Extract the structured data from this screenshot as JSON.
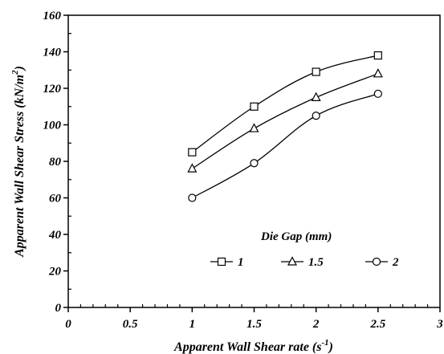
{
  "chart_data": {
    "type": "line",
    "xlabel": "Apparent Wall Shear rate (s",
    "xlabel_sup": "-1",
    "xlabel_end": ")",
    "ylabel": "Apparent Wall Shear Stress (kN/m",
    "ylabel_sup": "2",
    "ylabel_end": ")",
    "xlim": [
      0,
      3
    ],
    "ylim": [
      0,
      160
    ],
    "xticks": [
      0,
      0.5,
      1,
      1.5,
      2,
      2.5,
      3
    ],
    "xtick_labels": [
      "0",
      "0.5",
      "1",
      "1.5",
      "2",
      "2.5",
      "3"
    ],
    "yticks": [
      0,
      20,
      40,
      60,
      80,
      100,
      120,
      140,
      160
    ],
    "ytick_labels": [
      "0",
      "20",
      "40",
      "60",
      "80",
      "100",
      "120",
      "140",
      "160"
    ],
    "grid": false,
    "legend": {
      "title": "Die Gap  (mm)",
      "placement": "bottom-right, inside plot"
    },
    "x": [
      1,
      1.5,
      2,
      2.5
    ],
    "series": [
      {
        "name": "1",
        "marker": "square",
        "values": [
          85,
          110,
          129,
          138
        ]
      },
      {
        "name": "1.5",
        "marker": "triangle",
        "values": [
          76,
          98,
          115,
          128
        ]
      },
      {
        "name": "2",
        "marker": "circle",
        "values": [
          60,
          79,
          105,
          117
        ]
      }
    ]
  }
}
